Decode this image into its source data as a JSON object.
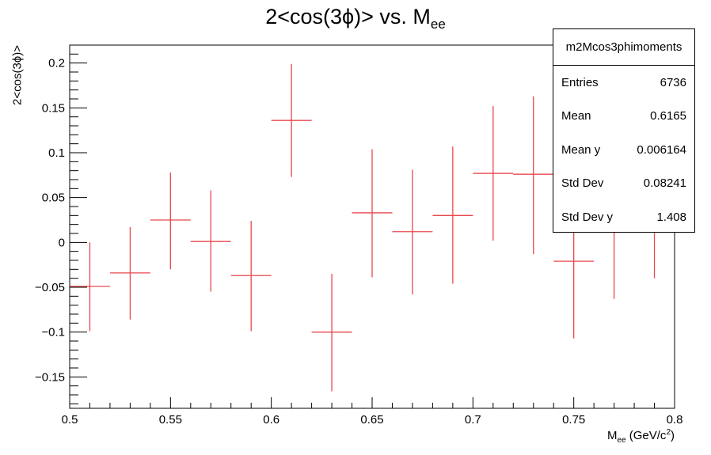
{
  "title": "2<cos(3ϕ)> vs. M",
  "title_sub": "ee",
  "ylabel": "2<cos(3ϕ)>",
  "xlabel_main": "M",
  "xlabel_sub": "ee",
  "xlabel_rest": " (GeV/c",
  "xlabel_sup": "2",
  "xlabel_end": ")",
  "stats": {
    "name": "m2Mcos3phimoments",
    "rows": [
      {
        "label": "Entries",
        "value": "6736"
      },
      {
        "label": "Mean",
        "value": "0.6165"
      },
      {
        "label": "Mean y",
        "value": "0.006164"
      },
      {
        "label": "Std Dev",
        "value": "0.08241"
      },
      {
        "label": "Std Dev y",
        "value": "1.408"
      }
    ]
  },
  "chart_data": {
    "type": "scatter",
    "error_bars": true,
    "series_color": "#e8484d",
    "xlim": [
      0.5,
      0.8
    ],
    "ylim": [
      -0.185,
      0.22
    ],
    "x_ticks": [
      0.5,
      0.55,
      0.6,
      0.65,
      0.7,
      0.75,
      0.8
    ],
    "x_tick_labels": [
      "0.5",
      "0.55",
      "0.6",
      "0.65",
      "0.7",
      "0.75",
      "0.8"
    ],
    "y_ticks": [
      -0.15,
      -0.1,
      -0.05,
      0,
      0.05,
      0.1,
      0.15,
      0.2
    ],
    "y_tick_labels": [
      "−0.15",
      "−0.1",
      "−0.05",
      "0",
      "0.05",
      "0.1",
      "0.15",
      "0.2"
    ],
    "bin_width": 0.02,
    "points": [
      {
        "x": 0.51,
        "y": -0.049,
        "ylow": -0.099,
        "yhigh": 0.0
      },
      {
        "x": 0.53,
        "y": -0.034,
        "ylow": -0.086,
        "yhigh": 0.017
      },
      {
        "x": 0.55,
        "y": 0.025,
        "ylow": -0.03,
        "yhigh": 0.078
      },
      {
        "x": 0.57,
        "y": 0.001,
        "ylow": -0.055,
        "yhigh": 0.058
      },
      {
        "x": 0.59,
        "y": -0.037,
        "ylow": -0.099,
        "yhigh": 0.024
      },
      {
        "x": 0.61,
        "y": 0.136,
        "ylow": 0.073,
        "yhigh": 0.199
      },
      {
        "x": 0.63,
        "y": -0.1,
        "ylow": -0.166,
        "yhigh": -0.035
      },
      {
        "x": 0.65,
        "y": 0.033,
        "ylow": -0.039,
        "yhigh": 0.104
      },
      {
        "x": 0.67,
        "y": 0.012,
        "ylow": -0.058,
        "yhigh": 0.081
      },
      {
        "x": 0.69,
        "y": 0.03,
        "ylow": -0.046,
        "yhigh": 0.107
      },
      {
        "x": 0.71,
        "y": 0.077,
        "ylow": 0.002,
        "yhigh": 0.152
      },
      {
        "x": 0.73,
        "y": 0.076,
        "ylow": -0.013,
        "yhigh": 0.163
      },
      {
        "x": 0.75,
        "y": -0.021,
        "ylow": -0.107,
        "yhigh": 0.065
      },
      {
        "x": 0.77,
        "y": 0.035,
        "ylow": -0.063,
        "yhigh": 0.133
      },
      {
        "x": 0.79,
        "y": 0.025,
        "ylow": -0.04,
        "yhigh": 0.09
      }
    ]
  }
}
